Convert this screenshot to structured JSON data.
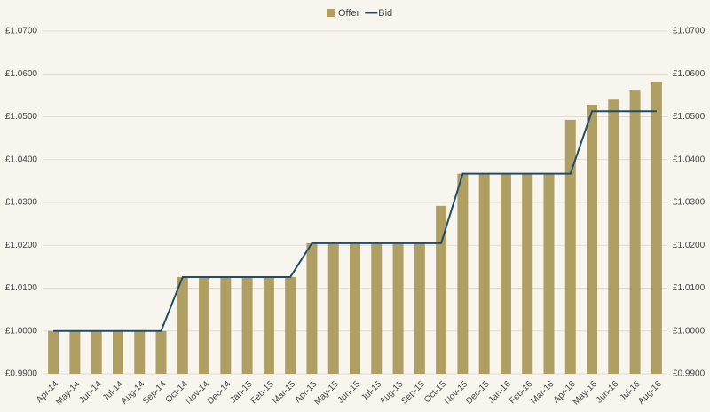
{
  "chart_data": {
    "type": "bar_line",
    "categories": [
      "Apr-14",
      "May-14",
      "Jun-14",
      "Jul-14",
      "Aug-14",
      "Sep-14",
      "Oct-14",
      "Nov-14",
      "Dec-14",
      "Jan-15",
      "Feb-15",
      "Mar-15",
      "Apr-15",
      "May-15",
      "Jun-15",
      "Jul-15",
      "Aug-15",
      "Sep-15",
      "Oct-15",
      "Nov-15",
      "Dec-15",
      "Jan-16",
      "Feb-16",
      "Mar-16",
      "Apr-16",
      "May-16",
      "Jun-16",
      "Jul-16",
      "Aug-16"
    ],
    "series": [
      {
        "name": "Offer",
        "type": "bar",
        "color": "#b09f62",
        "values": [
          1.0,
          1.0,
          1.0,
          1.0,
          1.0,
          1.0,
          1.0126,
          1.0126,
          1.0126,
          1.0126,
          1.0126,
          1.0126,
          1.0205,
          1.0205,
          1.0205,
          1.0205,
          1.0205,
          1.0205,
          1.0292,
          1.0367,
          1.0367,
          1.0367,
          1.0367,
          1.0367,
          1.0493,
          1.0528,
          1.054,
          1.0563,
          1.0582
        ]
      },
      {
        "name": "Bid",
        "type": "line",
        "color": "#1f4e6b",
        "values": [
          1.0,
          1.0,
          1.0,
          1.0,
          1.0,
          1.0,
          1.0126,
          1.0126,
          1.0126,
          1.0126,
          1.0126,
          1.0126,
          1.0205,
          1.0205,
          1.0205,
          1.0205,
          1.0205,
          1.0205,
          1.0205,
          1.0367,
          1.0367,
          1.0367,
          1.0367,
          1.0367,
          1.0367,
          1.0513,
          1.0513,
          1.0513,
          1.0513
        ]
      }
    ],
    "ylim": [
      0.99,
      1.07
    ],
    "yticks": [
      {
        "value": 0.99,
        "label": "£0.9900"
      },
      {
        "value": 1.0,
        "label": "£1.0000"
      },
      {
        "value": 1.01,
        "label": "£1.0100"
      },
      {
        "value": 1.02,
        "label": "£1.0200"
      },
      {
        "value": 1.03,
        "label": "£1.0300"
      },
      {
        "value": 1.04,
        "label": "£1.0400"
      },
      {
        "value": 1.05,
        "label": "£1.0500"
      },
      {
        "value": 1.06,
        "label": "£1.0600"
      },
      {
        "value": 1.07,
        "label": "£1.0700"
      }
    ],
    "y2lim": [
      0.99,
      1.07
    ],
    "y2ticks": [
      {
        "value": 0.99,
        "label": "£0.9900"
      },
      {
        "value": 1.0,
        "label": "£1.0000"
      },
      {
        "value": 1.01,
        "label": "£1.0100"
      },
      {
        "value": 1.02,
        "label": "£1.0200"
      },
      {
        "value": 1.03,
        "label": "£1.0300"
      },
      {
        "value": 1.04,
        "label": "£1.0400"
      },
      {
        "value": 1.05,
        "label": "£1.0500"
      },
      {
        "value": 1.06,
        "label": "£1.0600"
      },
      {
        "value": 1.07,
        "label": "£1.0700"
      }
    ],
    "grid": true,
    "legend": "top"
  }
}
